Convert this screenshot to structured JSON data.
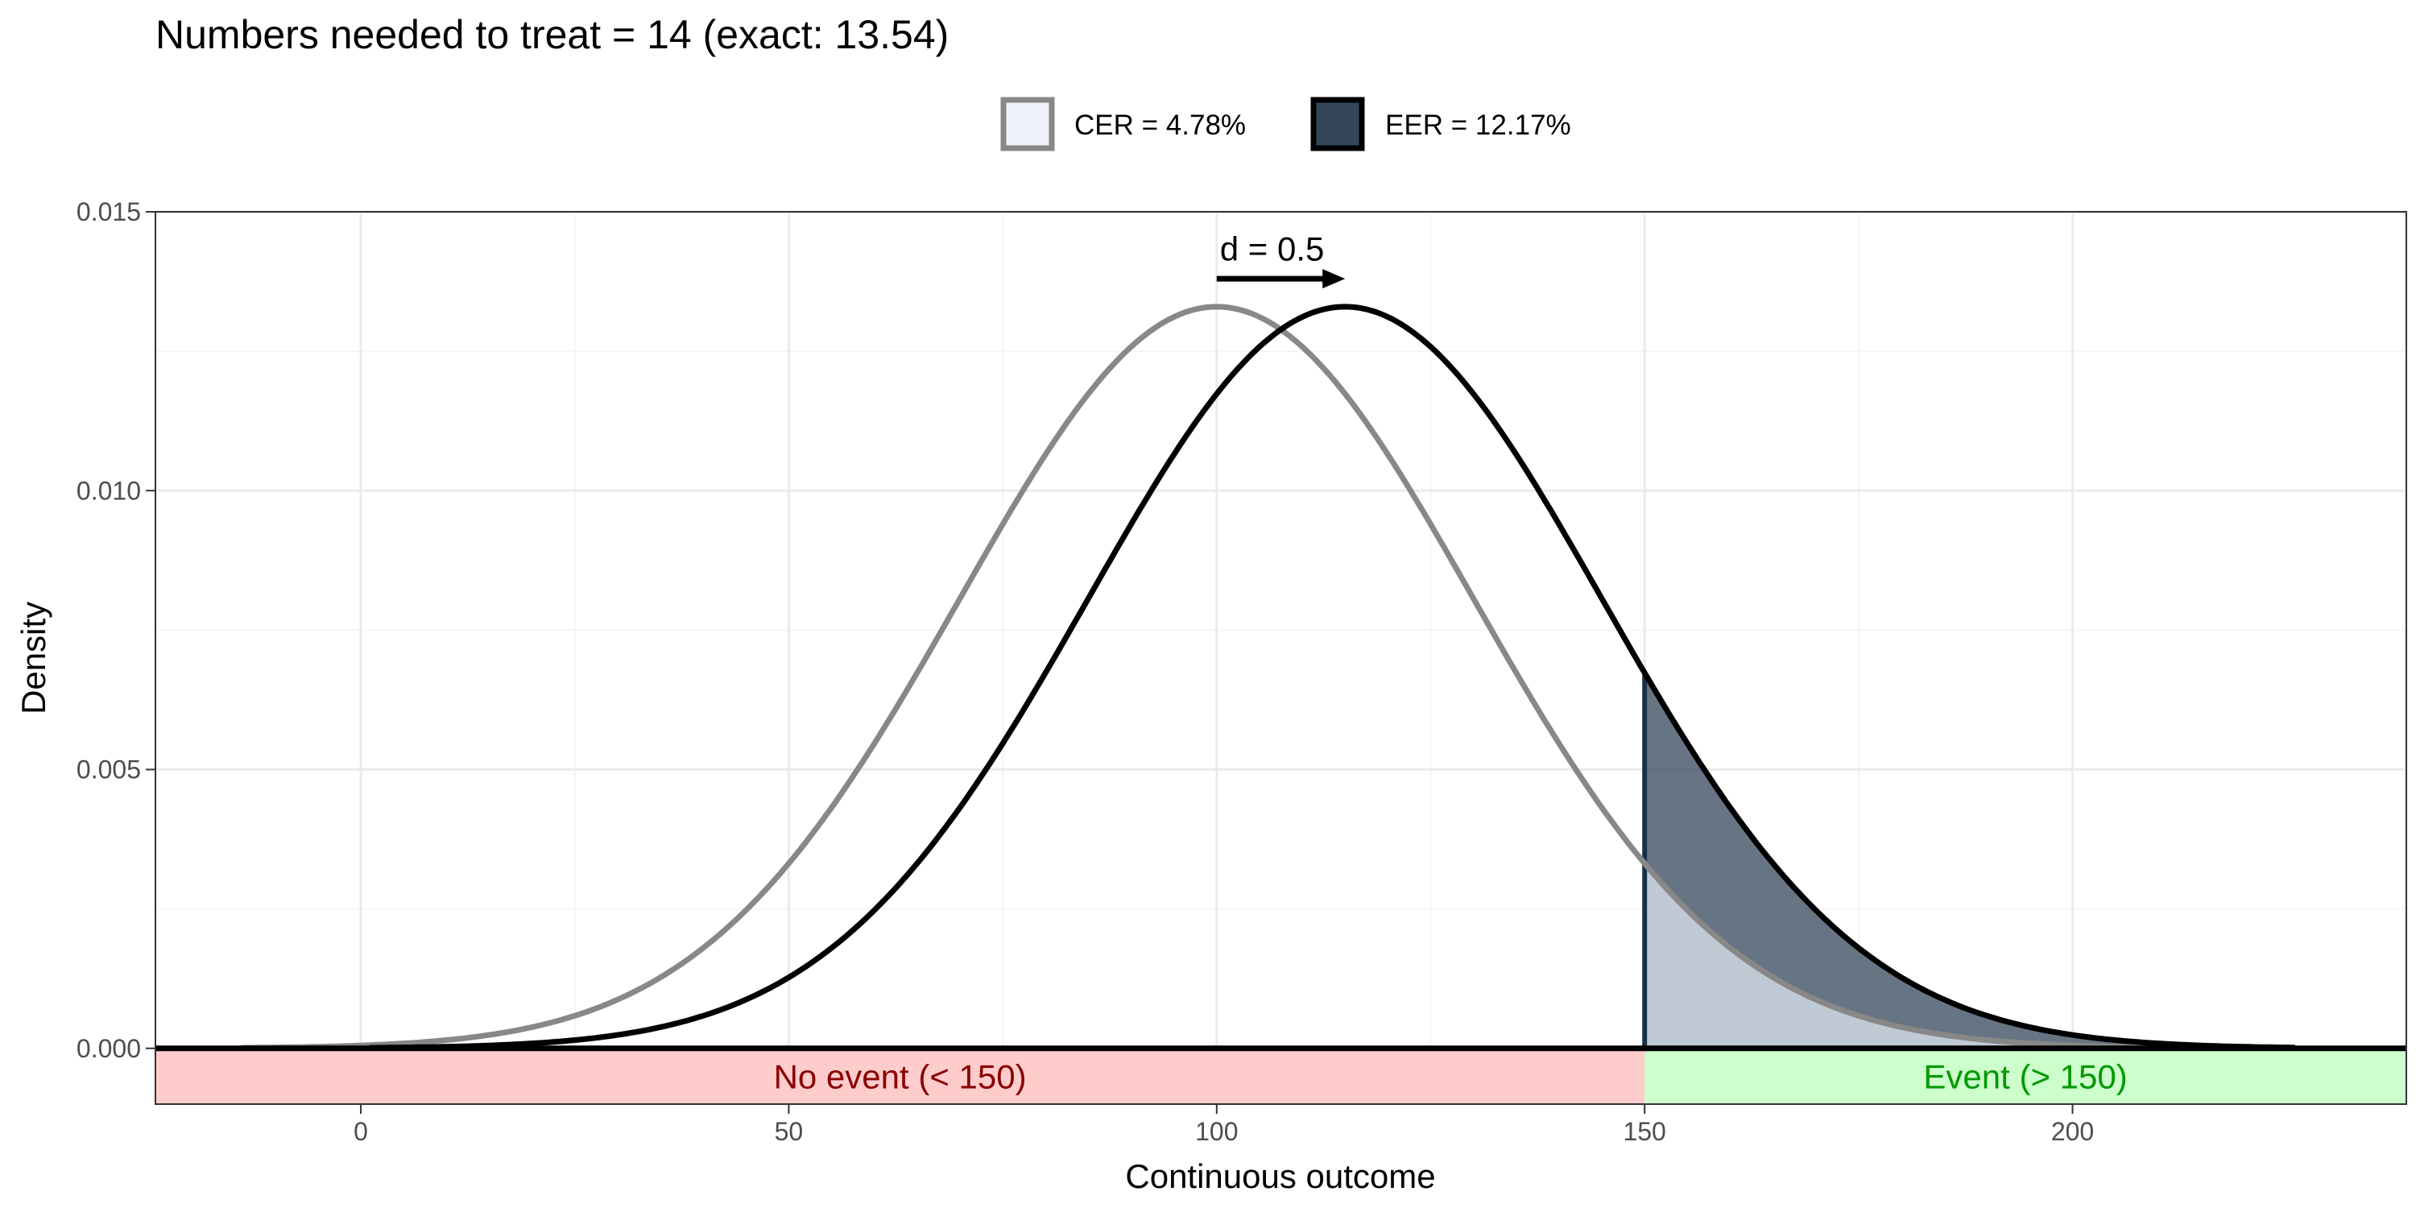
{
  "chart_data": {
    "type": "area",
    "title": "Numbers needed to treat = 14 (exact: 13.54)",
    "xlabel": "Continuous outcome",
    "ylabel": "Density",
    "xlim": [
      -24,
      239
    ],
    "ylim": [
      -0.001,
      0.015
    ],
    "x_ticks": [
      0,
      50,
      100,
      150,
      200
    ],
    "x_tick_labels": [
      "0",
      "50",
      "100",
      "150",
      "200"
    ],
    "y_ticks": [
      0.0,
      0.005,
      0.01,
      0.015
    ],
    "y_tick_labels": [
      "0.000",
      "0.005",
      "0.010",
      "0.015"
    ],
    "grid": true,
    "legend_position": "top",
    "threshold": 150,
    "series": [
      {
        "name": "CER = 4.78%",
        "distribution": "normal",
        "mean": 100,
        "sd": 30,
        "line_color": "#888888",
        "fill_color": "#c0cad4",
        "tail_proportion": 0.0478
      },
      {
        "name": "EER = 12.17%",
        "distribution": "normal",
        "mean": 115,
        "sd": 30,
        "line_color": "#000000",
        "fill_color": "#34465a",
        "tail_proportion": 0.1217
      }
    ],
    "regions": [
      {
        "label": "No event (< 150)",
        "from": -24,
        "to": 150,
        "fill_color": "#ffcccc",
        "text_color": "#8b0000"
      },
      {
        "label": "Event (> 150)",
        "from": 150,
        "to": 239,
        "fill_color": "#ccffcc",
        "text_color": "#009900"
      }
    ],
    "annotation": {
      "text": "d = 0.5",
      "arrow_from": 100,
      "arrow_to": 115,
      "arrow_y": 0.0138,
      "label_y": 0.0143
    }
  },
  "legend": {
    "items": [
      {
        "label": "CER = 4.78%",
        "swatch_fill": "#eef2f8",
        "swatch_border": "#888888"
      },
      {
        "label": "EER = 12.17%",
        "swatch_fill": "#34465a",
        "swatch_border": "#000000"
      }
    ]
  },
  "colors": {
    "panel_border": "#333333",
    "grid_major": "#ebebeb",
    "grid_minor": "#f5f5f5",
    "threshold_line": "#1b3045",
    "baseline": "#000000"
  }
}
